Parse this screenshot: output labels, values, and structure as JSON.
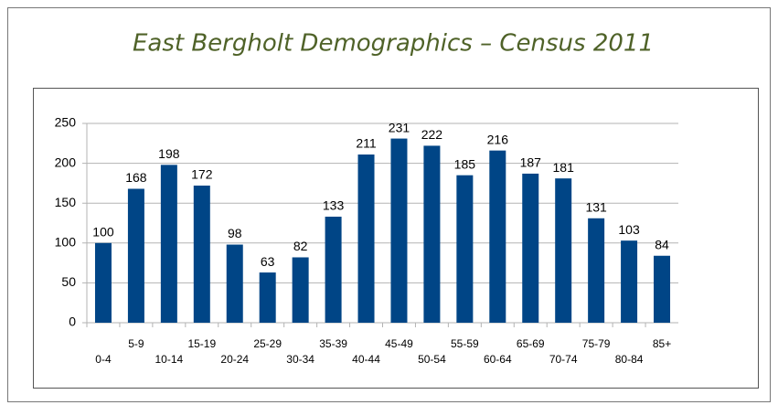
{
  "chart_data": {
    "type": "bar",
    "title": "East Bergholt Demographics – Census 2011",
    "categories": [
      "0-4",
      "5-9",
      "10-14",
      "15-19",
      "20-24",
      "25-29",
      "30-34",
      "35-39",
      "40-44",
      "45-49",
      "50-54",
      "55-59",
      "60-64",
      "65-69",
      "70-74",
      "75-79",
      "80-84",
      "85+"
    ],
    "values": [
      100,
      168,
      198,
      172,
      98,
      63,
      82,
      133,
      211,
      231,
      222,
      185,
      216,
      187,
      181,
      131,
      103,
      84
    ],
    "color": "#004586",
    "ylim": [
      0,
      250
    ],
    "yticks": [
      0,
      50,
      100,
      150,
      200,
      250
    ],
    "grid": true
  }
}
